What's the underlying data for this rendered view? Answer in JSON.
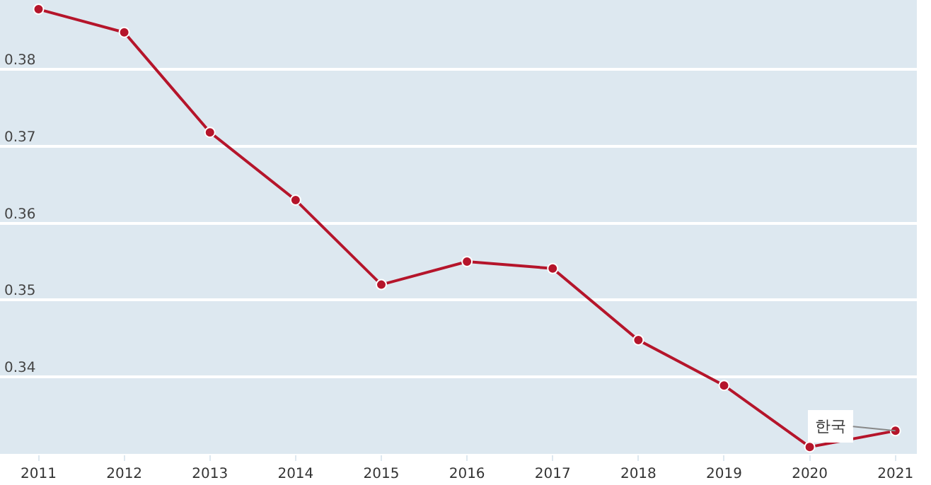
{
  "chart_data": {
    "type": "line",
    "categories": [
      "2011",
      "2012",
      "2013",
      "2014",
      "2015",
      "2016",
      "2017",
      "2018",
      "2019",
      "2020",
      "2021"
    ],
    "series": [
      {
        "name": "한국",
        "color": "#b5152b",
        "values": [
          0.3878,
          0.3848,
          0.3718,
          0.363,
          0.352,
          0.355,
          0.3541,
          0.3448,
          0.3389,
          0.3309,
          0.333
        ]
      }
    ],
    "ylim": [
      0.33,
      0.389
    ],
    "yticks": [
      0.34,
      0.35,
      0.36,
      0.37,
      0.38
    ],
    "grid": "y",
    "marker": "circle",
    "line_style": "solid",
    "legend": false
  }
}
